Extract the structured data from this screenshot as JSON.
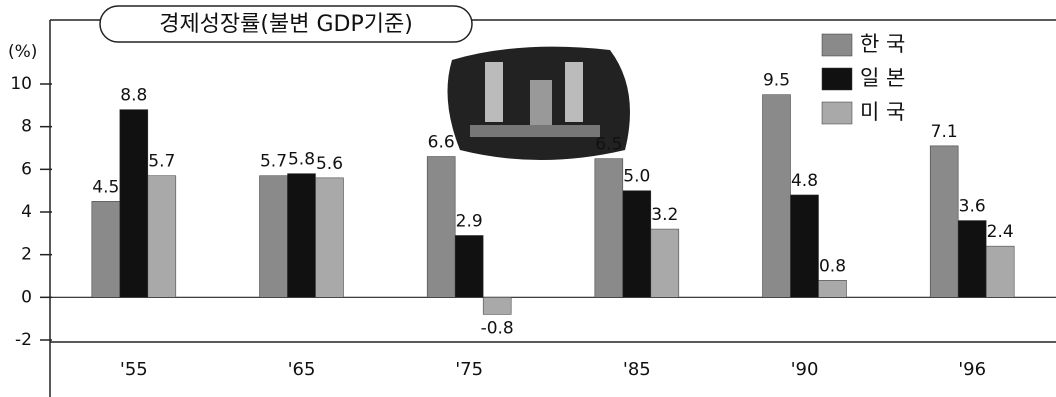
{
  "chart_data": {
    "type": "bar",
    "title": "경제성장률(불변 GDP기준)",
    "y_unit": "(%)",
    "categories": [
      "'55",
      "'65",
      "'75",
      "'85",
      "'90",
      "'96"
    ],
    "series": [
      {
        "name": "한 국",
        "color": "#8a8a8a",
        "values": [
          4.5,
          5.7,
          6.6,
          6.5,
          9.5,
          7.1
        ]
      },
      {
        "name": "일 본",
        "color": "#111111",
        "values": [
          8.8,
          5.8,
          2.9,
          5.0,
          4.8,
          3.6
        ],
        "value_labels": [
          "8.8",
          "5.8",
          "2.9",
          "5.0",
          "4.8",
          "3.6"
        ]
      },
      {
        "name": "미 국",
        "color": "#a9a9a9",
        "values": [
          5.7,
          5.6,
          -0.8,
          3.2,
          0.8,
          2.4
        ]
      }
    ],
    "ylim": [
      -2,
      13
    ],
    "yticks": [
      -2,
      0,
      2,
      4,
      6,
      8,
      10
    ],
    "grid": false,
    "legend": "top-right"
  }
}
